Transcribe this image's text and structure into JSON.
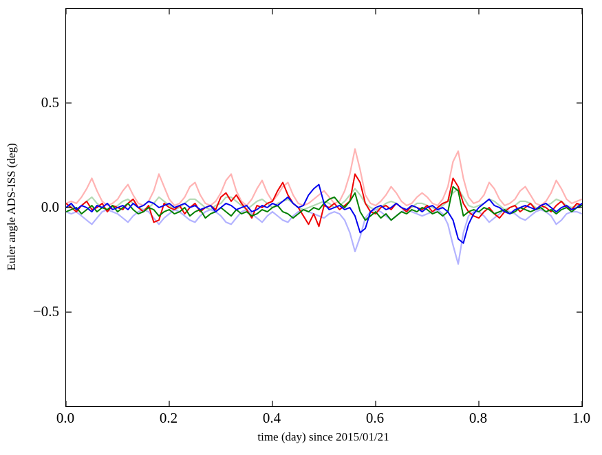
{
  "figure": {
    "x_tick_labels": [
      "0.0",
      "0.2",
      "0.4",
      "0.6",
      "0.8",
      "1.0"
    ],
    "y_tick_labels": [
      "0.5",
      "0.0",
      "−0.5"
    ]
  },
  "chart_data": {
    "type": "line",
    "title": "",
    "xlabel": "time (day) since 2015/01/21",
    "ylabel": "Euler angle ADS-ISS (deg)",
    "xlim": [
      0,
      1
    ],
    "ylim": [
      -0.95,
      0.95
    ],
    "x_ticks": [
      0,
      0.2,
      0.4,
      0.6,
      0.8,
      1.0
    ],
    "y_ticks": [
      -0.5,
      0,
      0.5
    ],
    "grid": false,
    "legend": "none",
    "x_start": 0,
    "x_step": 0.01,
    "series": [
      {
        "name": "pale-red-euler-angle",
        "color": "#ffb3b3",
        "width": 2.2,
        "values": [
          0.02,
          0.03,
          0.02,
          0.05,
          0.09,
          0.14,
          0.08,
          0.03,
          0.01,
          0.02,
          0.04,
          0.08,
          0.11,
          0.06,
          0.02,
          0.01,
          0.03,
          0.08,
          0.16,
          0.1,
          0.04,
          0.01,
          0.02,
          0.05,
          0.1,
          0.12,
          0.06,
          0.02,
          0.01,
          0.03,
          0.07,
          0.13,
          0.16,
          0.08,
          0.03,
          0.01,
          0.04,
          0.09,
          0.13,
          0.07,
          0.03,
          0.06,
          0.1,
          0.12,
          0.06,
          0.02,
          0.01,
          0.02,
          0.04,
          0.06,
          0.08,
          0.05,
          0.02,
          0.03,
          0.08,
          0.16,
          0.28,
          0.18,
          0.06,
          0.02,
          0.01,
          0.03,
          0.06,
          0.1,
          0.07,
          0.03,
          0.01,
          0.02,
          0.05,
          0.07,
          0.05,
          0.02,
          0.01,
          0.04,
          0.1,
          0.22,
          0.27,
          0.14,
          0.05,
          0.02,
          0.03,
          0.06,
          0.12,
          0.09,
          0.04,
          0.01,
          0.02,
          0.04,
          0.08,
          0.1,
          0.06,
          0.02,
          0.01,
          0.03,
          0.07,
          0.13,
          0.09,
          0.04,
          0.02,
          0.03,
          0.04
        ]
      },
      {
        "name": "pale-green-euler-angle",
        "color": "#b3d9b3",
        "width": 2.2,
        "values": [
          0,
          0.01,
          -0.01,
          0.01,
          0.03,
          0.05,
          0.02,
          0,
          -0.01,
          0,
          0.01,
          0.03,
          0.04,
          0.02,
          0,
          -0.01,
          0,
          0.02,
          0.05,
          0.03,
          0.01,
          -0.01,
          0,
          0.02,
          0.04,
          0.04,
          0.02,
          0,
          -0.01,
          0.01,
          0.02,
          0.05,
          0.05,
          0.03,
          0.01,
          -0.01,
          0.01,
          0.03,
          0.04,
          0.02,
          0,
          0.02,
          0.03,
          0.04,
          0.02,
          0,
          -0.01,
          0,
          0.01,
          0.02,
          0.03,
          0.02,
          0,
          0.01,
          0.03,
          0.06,
          0.09,
          0.06,
          0.02,
          0,
          -0.01,
          0,
          0.02,
          0.03,
          0.02,
          0,
          -0.01,
          0,
          0.02,
          0.02,
          0.01,
          0,
          -0.01,
          0.01,
          0.03,
          0.07,
          0.09,
          0.05,
          0.01,
          0,
          0.01,
          0.02,
          0.04,
          0.03,
          0.01,
          -0.01,
          0,
          0.01,
          0.03,
          0.03,
          0.02,
          0,
          -0.01,
          0.01,
          0.02,
          0.04,
          0.03,
          0.01,
          0,
          0.01,
          0.01
        ]
      },
      {
        "name": "pale-blue-euler-angle",
        "color": "#b3b3ff",
        "width": 2.2,
        "values": [
          -0.02,
          -0.03,
          -0.02,
          -0.04,
          -0.06,
          -0.08,
          -0.05,
          -0.02,
          -0.01,
          -0.02,
          -0.03,
          -0.05,
          -0.07,
          -0.04,
          -0.02,
          -0.01,
          -0.02,
          -0.05,
          -0.08,
          -0.05,
          -0.03,
          -0.01,
          -0.02,
          -0.04,
          -0.06,
          -0.07,
          -0.04,
          -0.02,
          -0.01,
          -0.02,
          -0.04,
          -0.07,
          -0.08,
          -0.05,
          -0.02,
          -0.01,
          -0.03,
          -0.05,
          -0.07,
          -0.04,
          -0.02,
          -0.04,
          -0.06,
          -0.07,
          -0.04,
          -0.02,
          -0.01,
          -0.02,
          -0.03,
          -0.04,
          -0.05,
          -0.03,
          -0.02,
          -0.03,
          -0.06,
          -0.12,
          -0.21,
          -0.14,
          -0.05,
          -0.02,
          -0.01,
          -0.02,
          -0.04,
          -0.06,
          -0.04,
          -0.02,
          -0.01,
          -0.02,
          -0.03,
          -0.04,
          -0.03,
          -0.02,
          -0.01,
          -0.03,
          -0.08,
          -0.18,
          -0.27,
          -0.12,
          -0.04,
          -0.02,
          -0.02,
          -0.04,
          -0.07,
          -0.05,
          -0.03,
          -0.01,
          -0.02,
          -0.03,
          -0.05,
          -0.06,
          -0.04,
          -0.02,
          -0.01,
          -0.02,
          -0.04,
          -0.08,
          -0.06,
          -0.03,
          -0.02,
          -0.02,
          -0.03
        ]
      },
      {
        "name": "red-euler-angle",
        "color": "#ee0000",
        "width": 2,
        "values": [
          0.02,
          0,
          -0.02,
          0.01,
          0.03,
          -0.01,
          0,
          0.02,
          -0.02,
          0.01,
          0,
          -0.01,
          0.02,
          0.04,
          0,
          -0.02,
          0.01,
          -0.07,
          -0.06,
          0.02,
          0,
          -0.01,
          0.01,
          -0.03,
          0,
          0.02,
          -0.02,
          0,
          0.01,
          -0.01,
          0.05,
          0.07,
          0.03,
          0.06,
          0.02,
          -0.01,
          -0.05,
          0.01,
          0,
          0.02,
          0.03,
          0.08,
          0.12,
          0.06,
          0.02,
          0,
          -0.04,
          -0.08,
          -0.03,
          -0.09,
          0.01,
          0,
          0.02,
          -0.01,
          0.01,
          0.03,
          0.16,
          0.12,
          0.02,
          -0.02,
          -0.03,
          0,
          0.01,
          -0.01,
          0.02,
          0,
          -0.02,
          0.01,
          0,
          -0.01,
          0.01,
          -0.02,
          0,
          0.02,
          0.03,
          0.14,
          0.1,
          0.02,
          -0.02,
          -0.04,
          -0.05,
          -0.02,
          0,
          -0.03,
          -0.05,
          -0.02,
          0,
          0.01,
          -0.02,
          0,
          0.02,
          -0.01,
          0.01,
          0,
          -0.02,
          0.01,
          0.03,
          0,
          -0.01,
          0.02,
          0.01
        ]
      },
      {
        "name": "green-euler-angle",
        "color": "#008000",
        "width": 2,
        "values": [
          -0.02,
          -0.01,
          0,
          -0.03,
          -0.01,
          0.01,
          -0.02,
          0,
          -0.01,
          0.01,
          -0.02,
          0,
          0.02,
          -0.01,
          -0.03,
          -0.02,
          0,
          -0.01,
          -0.04,
          -0.02,
          -0.01,
          -0.03,
          -0.02,
          0,
          -0.04,
          -0.02,
          -0.01,
          -0.05,
          -0.03,
          -0.02,
          0,
          -0.02,
          -0.04,
          -0.01,
          -0.03,
          -0.02,
          -0.04,
          -0.03,
          -0.01,
          -0.02,
          0,
          0.01,
          -0.02,
          -0.03,
          -0.05,
          -0.03,
          -0.01,
          -0.02,
          0,
          -0.01,
          0.02,
          0.04,
          0.05,
          0.02,
          0,
          0.03,
          0.07,
          -0.02,
          -0.06,
          -0.04,
          -0.02,
          -0.05,
          -0.03,
          -0.06,
          -0.04,
          -0.02,
          -0.03,
          -0.01,
          -0.02,
          0,
          -0.01,
          -0.03,
          -0.02,
          -0.04,
          -0.02,
          0.1,
          0.08,
          -0.04,
          -0.02,
          -0.01,
          -0.02,
          0,
          -0.01,
          -0.03,
          -0.02,
          -0.01,
          -0.03,
          -0.02,
          0,
          -0.01,
          -0.02,
          -0.01,
          0,
          -0.02,
          -0.01,
          -0.03,
          -0.01,
          0,
          -0.02,
          0,
          0.01
        ]
      },
      {
        "name": "blue-euler-angle",
        "color": "#0000ee",
        "width": 2,
        "values": [
          0,
          0.02,
          -0.01,
          0.01,
          0,
          -0.02,
          0.01,
          0,
          0.02,
          -0.01,
          0,
          0.01,
          -0.01,
          0.02,
          0,
          0.01,
          0.03,
          0.02,
          0,
          0.01,
          0.02,
          0,
          0.01,
          0.02,
          0,
          0.01,
          -0.01,
          0,
          0.01,
          -0.02,
          0,
          0.02,
          0.01,
          -0.01,
          0,
          0.01,
          -0.02,
          -0.01,
          0.01,
          0,
          0.02,
          0.01,
          0.03,
          0.05,
          0.02,
          0,
          0.01,
          0.06,
          0.09,
          0.11,
          0.02,
          -0.01,
          0,
          0.01,
          -0.01,
          0,
          -0.04,
          -0.12,
          -0.1,
          -0.02,
          0,
          0.01,
          -0.01,
          0,
          0.02,
          0,
          -0.01,
          0.01,
          0,
          -0.02,
          0,
          0.01,
          -0.01,
          0,
          -0.02,
          -0.06,
          -0.15,
          -0.17,
          -0.08,
          -0.03,
          0,
          0.02,
          0.04,
          0.01,
          0,
          -0.02,
          -0.03,
          -0.01,
          0,
          0.01,
          0,
          -0.01,
          0.01,
          0.02,
          0,
          -0.02,
          0,
          0.01,
          -0.01,
          0,
          0.02
        ]
      }
    ]
  }
}
